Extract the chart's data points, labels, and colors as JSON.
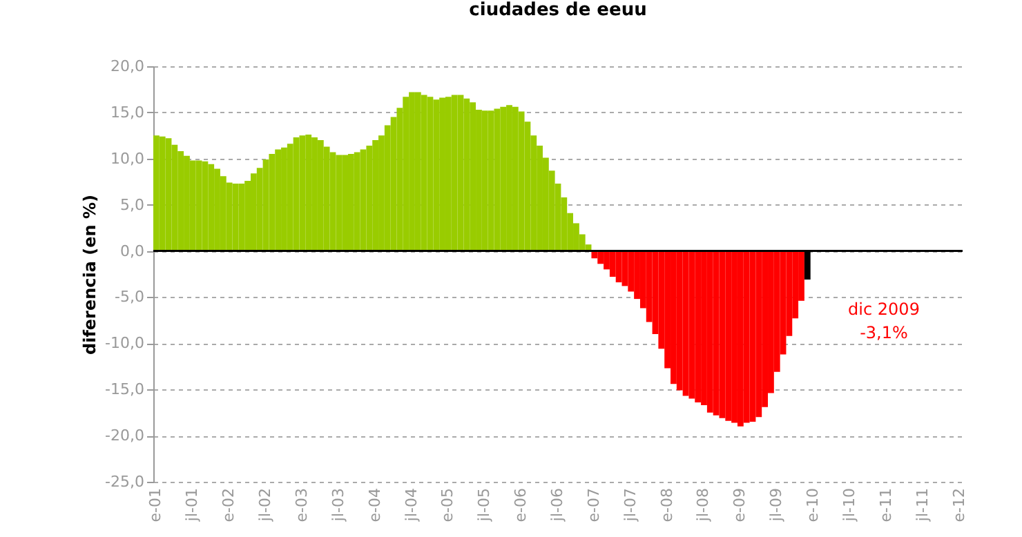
{
  "chart_data": {
    "type": "bar",
    "title": "ciudades de eeuu",
    "ylabel": "diferencia (en %)",
    "categories": [
      "e-01",
      null,
      null,
      null,
      null,
      null,
      "jl-01",
      null,
      null,
      null,
      null,
      null,
      "e-02",
      null,
      null,
      null,
      null,
      null,
      "jl-02",
      null,
      null,
      null,
      null,
      null,
      "e-03",
      null,
      null,
      null,
      null,
      null,
      "jl-03",
      null,
      null,
      null,
      null,
      null,
      "e-04",
      null,
      null,
      null,
      null,
      null,
      "jl-04",
      null,
      null,
      null,
      null,
      null,
      "e-05",
      null,
      null,
      null,
      null,
      null,
      "jl-05",
      null,
      null,
      null,
      null,
      null,
      "e-06",
      null,
      null,
      null,
      null,
      null,
      "jl-06",
      null,
      null,
      null,
      null,
      null,
      "e-07",
      null,
      null,
      null,
      null,
      null,
      "jl-07",
      null,
      null,
      null,
      null,
      null,
      "e-08",
      null,
      null,
      null,
      null,
      null,
      "jl-08",
      null,
      null,
      null,
      null,
      null,
      "e-09",
      null,
      null,
      null,
      null,
      null,
      "jl-09",
      null,
      null,
      null,
      null,
      null,
      "e-10",
      null,
      null,
      null,
      null,
      null,
      "jl-10",
      null,
      null,
      null,
      null,
      null,
      "e-11",
      null,
      null,
      null,
      null,
      null,
      "jl-11",
      null,
      null,
      null,
      null,
      null,
      "e-12"
    ],
    "values": [
      12.5,
      12.4,
      12.2,
      11.5,
      10.8,
      10.3,
      9.8,
      9.8,
      9.7,
      9.4,
      8.9,
      8.1,
      7.4,
      7.3,
      7.3,
      7.6,
      8.4,
      9.0,
      9.9,
      10.5,
      11.0,
      11.2,
      11.6,
      12.3,
      12.5,
      12.6,
      12.3,
      12.0,
      11.3,
      10.7,
      10.4,
      10.4,
      10.5,
      10.7,
      11.0,
      11.4,
      12.0,
      12.5,
      13.6,
      14.5,
      15.5,
      16.7,
      17.2,
      17.2,
      16.9,
      16.7,
      16.4,
      16.6,
      16.7,
      16.9,
      16.9,
      16.5,
      16.1,
      15.3,
      15.2,
      15.2,
      15.4,
      15.6,
      15.8,
      15.6,
      15.1,
      14.0,
      12.5,
      11.4,
      10.1,
      8.7,
      7.3,
      5.8,
      4.1,
      3.0,
      1.8,
      0.7,
      -0.8,
      -1.4,
      -2.0,
      -2.8,
      -3.4,
      -3.8,
      -4.4,
      -5.2,
      -6.2,
      -7.7,
      -9.0,
      -10.6,
      -12.7,
      -14.4,
      -15.1,
      -15.7,
      -16.0,
      -16.4,
      -16.7,
      -17.5,
      -17.8,
      -18.1,
      -18.4,
      -18.6,
      -19.0,
      -18.6,
      -18.5,
      -18.0,
      -16.9,
      -15.4,
      -13.1,
      -11.2,
      -9.2,
      -7.3,
      -5.4,
      -3.1,
      null,
      null,
      null,
      null,
      null,
      null,
      null,
      null,
      null,
      null,
      null,
      null,
      null,
      null,
      null,
      null,
      null,
      null,
      null,
      null,
      null,
      null,
      null,
      null,
      null
    ],
    "colors": [
      "#99cc00",
      "#99cc00",
      "#99cc00",
      "#99cc00",
      "#99cc00",
      "#99cc00",
      "#99cc00",
      "#99cc00",
      "#99cc00",
      "#99cc00",
      "#99cc00",
      "#99cc00",
      "#99cc00",
      "#99cc00",
      "#99cc00",
      "#99cc00",
      "#99cc00",
      "#99cc00",
      "#99cc00",
      "#99cc00",
      "#99cc00",
      "#99cc00",
      "#99cc00",
      "#99cc00",
      "#99cc00",
      "#99cc00",
      "#99cc00",
      "#99cc00",
      "#99cc00",
      "#99cc00",
      "#99cc00",
      "#99cc00",
      "#99cc00",
      "#99cc00",
      "#99cc00",
      "#99cc00",
      "#99cc00",
      "#99cc00",
      "#99cc00",
      "#99cc00",
      "#99cc00",
      "#99cc00",
      "#99cc00",
      "#99cc00",
      "#99cc00",
      "#99cc00",
      "#99cc00",
      "#99cc00",
      "#99cc00",
      "#99cc00",
      "#99cc00",
      "#99cc00",
      "#99cc00",
      "#99cc00",
      "#99cc00",
      "#99cc00",
      "#99cc00",
      "#99cc00",
      "#99cc00",
      "#99cc00",
      "#99cc00",
      "#99cc00",
      "#99cc00",
      "#99cc00",
      "#99cc00",
      "#99cc00",
      "#99cc00",
      "#99cc00",
      "#99cc00",
      "#99cc00",
      "#99cc00",
      "#99cc00",
      "#ff0000",
      "#ff0000",
      "#ff0000",
      "#ff0000",
      "#ff0000",
      "#ff0000",
      "#ff0000",
      "#ff0000",
      "#ff0000",
      "#ff0000",
      "#ff0000",
      "#ff0000",
      "#ff0000",
      "#ff0000",
      "#ff0000",
      "#ff0000",
      "#ff0000",
      "#ff0000",
      "#ff0000",
      "#ff0000",
      "#ff0000",
      "#ff0000",
      "#ff0000",
      "#ff0000",
      "#ff0000",
      "#ff0000",
      "#ff0000",
      "#ff0000",
      "#ff0000",
      "#ff0000",
      "#ff0000",
      "#ff0000",
      "#ff0000",
      "#ff0000",
      "#ff0000",
      "#000000",
      null,
      null,
      null,
      null,
      null,
      null,
      null,
      null,
      null,
      null,
      null,
      null,
      null,
      null,
      null,
      null,
      null,
      null,
      null,
      null,
      null,
      null,
      null,
      null,
      null
    ],
    "ylim": [
      -25,
      20
    ],
    "yticks": [
      {
        "value": -25,
        "label": "-25,0"
      },
      {
        "value": -20,
        "label": "-20,0"
      },
      {
        "value": -15,
        "label": "-15,0"
      },
      {
        "value": -10,
        "label": "-10,0"
      },
      {
        "value": -5,
        "label": "-5,0"
      },
      {
        "value": 0,
        "label": "0,0"
      },
      {
        "value": 5,
        "label": "5,0"
      },
      {
        "value": 10,
        "label": "10,0"
      },
      {
        "value": 15,
        "label": "15,0"
      },
      {
        "value": 20,
        "label": "20,0"
      }
    ],
    "grid": "y",
    "annotations": [
      "dic 2009",
      "-3,1%"
    ]
  }
}
